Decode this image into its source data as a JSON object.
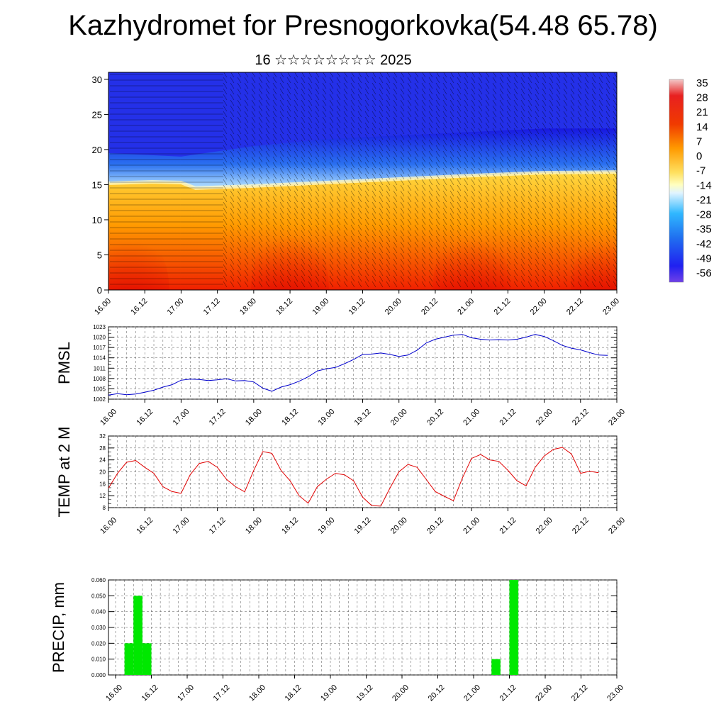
{
  "header": {
    "title": "Kazhydromet for Presnogorkovka(54.48 65.78)",
    "subtitle": "16 ☆☆☆☆☆☆☆☆ 2025"
  },
  "time_labels": [
    "16.00",
    "16.12",
    "17.00",
    "17.12",
    "18.00",
    "18.12",
    "19.00",
    "19.12",
    "20.00",
    "20.12",
    "21.00",
    "21.12",
    "22.00",
    "22.12",
    "23.00"
  ],
  "chart_data": [
    {
      "type": "heatmap",
      "name_hint": "cross-section",
      "x_range": [
        "16.00",
        "23.00"
      ],
      "y_ticks": [
        "0",
        "5",
        "10",
        "15",
        "20",
        "25",
        "30"
      ],
      "ylim": [
        0,
        31
      ],
      "colorbar_labels": [
        "35",
        "28",
        "21",
        "14",
        "7",
        "0",
        "-7",
        "-14",
        "-21",
        "-28",
        "-35",
        "-42",
        "-49",
        "-56"
      ],
      "colorbar_range": [
        -60,
        38
      ],
      "freezing_level": [
        {
          "x": 0,
          "y": 15.2
        },
        {
          "x": 0.6,
          "y": 15.4
        },
        {
          "x": 1.0,
          "y": 15.3
        },
        {
          "x": 1.2,
          "y": 14.5
        },
        {
          "x": 2.0,
          "y": 14.8
        },
        {
          "x": 3.0,
          "y": 15.3
        },
        {
          "x": 4.0,
          "y": 15.8
        },
        {
          "x": 5.0,
          "y": 16.3
        },
        {
          "x": 6.0,
          "y": 16.7
        },
        {
          "x": 7.0,
          "y": 16.8
        }
      ],
      "tropopause_level": [
        {
          "x": 0,
          "y": 19.5
        },
        {
          "x": 1.0,
          "y": 19.0
        },
        {
          "x": 2.0,
          "y": 20.5
        },
        {
          "x": 3.0,
          "y": 21.5
        },
        {
          "x": 4.0,
          "y": 22.0
        },
        {
          "x": 5.0,
          "y": 22.5
        },
        {
          "x": 6.0,
          "y": 23.0
        },
        {
          "x": 7.0,
          "y": 23.0
        }
      ],
      "warm_cores": [
        {
          "x": 0.3,
          "y": 0,
          "strength": 0.9
        },
        {
          "x": 2.5,
          "y": 0,
          "strength": 1.0
        },
        {
          "x": 5.0,
          "y": 0,
          "strength": 0.95
        },
        {
          "x": 6.9,
          "y": 0,
          "strength": 0.9
        }
      ]
    },
    {
      "type": "line",
      "ylabel": "PMSL",
      "y_ticks": [
        1002,
        1005,
        1008,
        1011,
        1014,
        1017,
        1020,
        1023
      ],
      "ylim": [
        1002,
        1023
      ],
      "color": "#0000cc",
      "x": [
        0,
        0.125,
        0.25,
        0.375,
        0.5,
        0.625,
        0.75,
        0.875,
        1,
        1.125,
        1.25,
        1.375,
        1.5,
        1.625,
        1.75,
        1.875,
        2,
        2.125,
        2.25,
        2.375,
        2.5,
        2.625,
        2.75,
        2.875,
        3,
        3.125,
        3.25,
        3.375,
        3.5,
        3.625,
        3.75,
        3.875,
        4,
        4.125,
        4.25,
        4.375,
        4.5,
        4.625,
        4.75,
        4.875,
        5,
        5.125,
        5.25,
        5.375,
        5.5,
        5.625,
        5.75,
        5.875,
        6,
        6.125,
        6.25,
        6.375,
        6.5,
        6.625,
        6.75,
        6.875,
        7
      ],
      "values": [
        1003.2,
        1003.6,
        1003.3,
        1003.5,
        1004.0,
        1004.6,
        1005.5,
        1006.2,
        1007.5,
        1007.8,
        1007.7,
        1007.4,
        1007.6,
        1007.9,
        1007.3,
        1007.4,
        1007.0,
        1005.2,
        1004.3,
        1005.5,
        1006.2,
        1007.2,
        1008.5,
        1010.2,
        1010.8,
        1011.2,
        1012.3,
        1013.5,
        1015.0,
        1015.1,
        1015.4,
        1015.0,
        1014.4,
        1014.8,
        1016.2,
        1018.3,
        1019.4,
        1020.0,
        1020.6,
        1020.8,
        1019.8,
        1019.4,
        1019.2,
        1019.3,
        1019.2,
        1019.4,
        1020.0,
        1020.8,
        1020.2,
        1019.0,
        1017.6,
        1016.8,
        1016.3,
        1015.5,
        1014.8,
        1014.7,
        null
      ]
    },
    {
      "type": "line",
      "ylabel": "TEMP at 2 M",
      "y_ticks": [
        8,
        12,
        16,
        20,
        24,
        28,
        32
      ],
      "ylim": [
        8,
        32
      ],
      "color": "#e00000",
      "x": [
        0,
        0.125,
        0.25,
        0.375,
        0.5,
        0.625,
        0.75,
        0.875,
        1,
        1.125,
        1.25,
        1.375,
        1.5,
        1.625,
        1.75,
        1.875,
        2,
        2.125,
        2.25,
        2.375,
        2.5,
        2.625,
        2.75,
        2.875,
        3,
        3.125,
        3.25,
        3.375,
        3.5,
        3.625,
        3.75,
        3.875,
        4,
        4.125,
        4.25,
        4.375,
        4.5,
        4.625,
        4.75,
        4.875,
        5,
        5.125,
        5.25,
        5.375,
        5.5,
        5.625,
        5.75,
        5.875,
        6,
        6.125,
        6.25,
        6.375,
        6.5,
        6.625,
        6.75,
        6.875,
        7
      ],
      "values": [
        14.5,
        19.5,
        23.2,
        23.8,
        21.5,
        19.5,
        15.0,
        13.4,
        12.8,
        19.0,
        22.8,
        23.5,
        21.5,
        17.5,
        15.0,
        13.3,
        20.5,
        26.8,
        26.2,
        20.5,
        17.0,
        12.0,
        9.5,
        15.0,
        17.5,
        19.5,
        19.0,
        17.0,
        11.5,
        8.7,
        8.5,
        14.5,
        20.0,
        22.5,
        21.5,
        17.5,
        13.4,
        11.8,
        10.3,
        18.0,
        24.5,
        25.8,
        24.0,
        23.5,
        20.5,
        17.0,
        15.3,
        21.5,
        25.3,
        27.5,
        28.2,
        26.0,
        19.5,
        20.2,
        19.7,
        null,
        null
      ]
    },
    {
      "type": "bar",
      "ylabel": "PRECIP, mm",
      "y_ticks": [
        "0.000",
        "0.010",
        "0.020",
        "0.030",
        "0.040",
        "0.050",
        "0.060"
      ],
      "ylim": [
        0,
        0.06
      ],
      "color": "#00e800",
      "x": [
        0.125,
        0.25,
        0.375,
        5.25,
        5.5
      ],
      "values": [
        0.02,
        0.05,
        0.02,
        0.01,
        0.06
      ]
    }
  ]
}
